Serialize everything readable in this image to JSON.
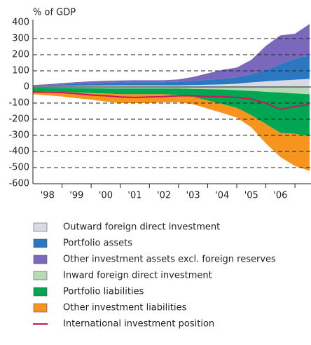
{
  "chart_data": {
    "type": "area",
    "y_label": "% of GDP",
    "x": [
      1998,
      1998.5,
      1999,
      1999.5,
      2000,
      2000.5,
      2001,
      2001.5,
      2002,
      2002.5,
      2003,
      2003.5,
      2004,
      2004.5,
      2005,
      2005.5,
      2006,
      2006.5,
      2007,
      2007.5
    ],
    "xlim": [
      1998,
      2007.55
    ],
    "xticks": [
      {
        "value": 1998.5,
        "label": "'98"
      },
      {
        "value": 1999.5,
        "label": "'99"
      },
      {
        "value": 2000.5,
        "label": "'00"
      },
      {
        "value": 2001.5,
        "label": "'01"
      },
      {
        "value": 2002.5,
        "label": "'02"
      },
      {
        "value": 2003.5,
        "label": "'03"
      },
      {
        "value": 2004.5,
        "label": "'04"
      },
      {
        "value": 2005.5,
        "label": "'05"
      },
      {
        "value": 2006.5,
        "label": "'06"
      }
    ],
    "xminorticks": [
      1999,
      2000,
      2001,
      2002,
      2003,
      2004,
      2005,
      2006,
      2007
    ],
    "ylim": [
      -600,
      400
    ],
    "yticks": [
      -600,
      -500,
      -400,
      -300,
      -200,
      -100,
      0,
      100,
      200,
      300,
      400
    ],
    "grid": true,
    "stacked": true,
    "series": [
      {
        "name": "Outward foreign direct investment",
        "color": "#d6dbe5",
        "values": [
          5,
          5,
          6,
          7,
          8,
          9,
          10,
          10,
          10,
          10,
          10,
          12,
          14,
          16,
          20,
          28,
          35,
          40,
          45,
          50
        ]
      },
      {
        "name": "Portfolio assets",
        "color": "#2b78c2",
        "values": [
          5,
          7,
          10,
          13,
          15,
          17,
          18,
          20,
          20,
          20,
          22,
          25,
          30,
          35,
          40,
          50,
          70,
          100,
          130,
          145
        ]
      },
      {
        "name": "Other investment assets excl. foreign reserves",
        "color": "#7a68bd",
        "values": [
          2,
          5,
          8,
          10,
          12,
          12,
          12,
          12,
          12,
          12,
          15,
          25,
          40,
          55,
          60,
          90,
          150,
          180,
          155,
          195
        ]
      },
      {
        "name": "Inward foreign direct investment",
        "color": "#b4dbb6",
        "values": [
          -5,
          -5,
          -6,
          -7,
          -8,
          -9,
          -10,
          -10,
          -10,
          -10,
          -10,
          -12,
          -14,
          -16,
          -20,
          -25,
          -30,
          -35,
          -40,
          -45
        ]
      },
      {
        "name": "Portfolio liabilities",
        "color": "#00a651",
        "values": [
          -20,
          -22,
          -25,
          -28,
          -30,
          -32,
          -35,
          -35,
          -35,
          -35,
          -40,
          -50,
          -70,
          -90,
          -110,
          -150,
          -200,
          -250,
          -250,
          -260
        ]
      },
      {
        "name": "Other investment liabilities",
        "color": "#f7941d",
        "values": [
          -20,
          -25,
          -28,
          -35,
          -40,
          -50,
          -55,
          -55,
          -55,
          -50,
          -45,
          -45,
          -50,
          -55,
          -60,
          -75,
          -120,
          -150,
          -200,
          -215
        ]
      },
      {
        "name": "International investment position",
        "color": "#c8175d",
        "type": "line",
        "values": [
          -30,
          -32,
          -35,
          -42,
          -50,
          -55,
          -62,
          -65,
          -62,
          -60,
          -55,
          -55,
          -60,
          -60,
          -65,
          -75,
          -100,
          -140,
          -120,
          -110
        ]
      }
    ]
  }
}
